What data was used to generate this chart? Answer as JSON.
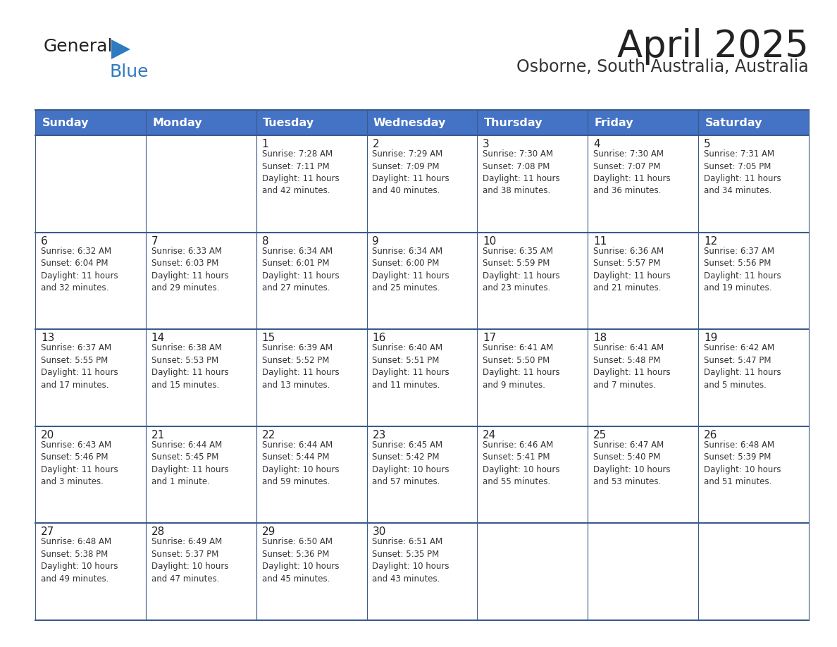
{
  "title": "April 2025",
  "subtitle": "Osborne, South Australia, Australia",
  "days_of_week": [
    "Sunday",
    "Monday",
    "Tuesday",
    "Wednesday",
    "Thursday",
    "Friday",
    "Saturday"
  ],
  "header_bg": "#4472C4",
  "header_text": "#FFFFFF",
  "row_bg": "#FFFFFF",
  "cell_border_color": "#3A5A8C",
  "day_number_color": "#222222",
  "text_color": "#333333",
  "title_color": "#222222",
  "subtitle_color": "#333333",
  "logo_general_color": "#222222",
  "logo_blue_color": "#2E7BBF",
  "weeks": [
    {
      "days": [
        {
          "date": "",
          "info": ""
        },
        {
          "date": "",
          "info": ""
        },
        {
          "date": "1",
          "info": "Sunrise: 7:28 AM\nSunset: 7:11 PM\nDaylight: 11 hours\nand 42 minutes."
        },
        {
          "date": "2",
          "info": "Sunrise: 7:29 AM\nSunset: 7:09 PM\nDaylight: 11 hours\nand 40 minutes."
        },
        {
          "date": "3",
          "info": "Sunrise: 7:30 AM\nSunset: 7:08 PM\nDaylight: 11 hours\nand 38 minutes."
        },
        {
          "date": "4",
          "info": "Sunrise: 7:30 AM\nSunset: 7:07 PM\nDaylight: 11 hours\nand 36 minutes."
        },
        {
          "date": "5",
          "info": "Sunrise: 7:31 AM\nSunset: 7:05 PM\nDaylight: 11 hours\nand 34 minutes."
        }
      ]
    },
    {
      "days": [
        {
          "date": "6",
          "info": "Sunrise: 6:32 AM\nSunset: 6:04 PM\nDaylight: 11 hours\nand 32 minutes."
        },
        {
          "date": "7",
          "info": "Sunrise: 6:33 AM\nSunset: 6:03 PM\nDaylight: 11 hours\nand 29 minutes."
        },
        {
          "date": "8",
          "info": "Sunrise: 6:34 AM\nSunset: 6:01 PM\nDaylight: 11 hours\nand 27 minutes."
        },
        {
          "date": "9",
          "info": "Sunrise: 6:34 AM\nSunset: 6:00 PM\nDaylight: 11 hours\nand 25 minutes."
        },
        {
          "date": "10",
          "info": "Sunrise: 6:35 AM\nSunset: 5:59 PM\nDaylight: 11 hours\nand 23 minutes."
        },
        {
          "date": "11",
          "info": "Sunrise: 6:36 AM\nSunset: 5:57 PM\nDaylight: 11 hours\nand 21 minutes."
        },
        {
          "date": "12",
          "info": "Sunrise: 6:37 AM\nSunset: 5:56 PM\nDaylight: 11 hours\nand 19 minutes."
        }
      ]
    },
    {
      "days": [
        {
          "date": "13",
          "info": "Sunrise: 6:37 AM\nSunset: 5:55 PM\nDaylight: 11 hours\nand 17 minutes."
        },
        {
          "date": "14",
          "info": "Sunrise: 6:38 AM\nSunset: 5:53 PM\nDaylight: 11 hours\nand 15 minutes."
        },
        {
          "date": "15",
          "info": "Sunrise: 6:39 AM\nSunset: 5:52 PM\nDaylight: 11 hours\nand 13 minutes."
        },
        {
          "date": "16",
          "info": "Sunrise: 6:40 AM\nSunset: 5:51 PM\nDaylight: 11 hours\nand 11 minutes."
        },
        {
          "date": "17",
          "info": "Sunrise: 6:41 AM\nSunset: 5:50 PM\nDaylight: 11 hours\nand 9 minutes."
        },
        {
          "date": "18",
          "info": "Sunrise: 6:41 AM\nSunset: 5:48 PM\nDaylight: 11 hours\nand 7 minutes."
        },
        {
          "date": "19",
          "info": "Sunrise: 6:42 AM\nSunset: 5:47 PM\nDaylight: 11 hours\nand 5 minutes."
        }
      ]
    },
    {
      "days": [
        {
          "date": "20",
          "info": "Sunrise: 6:43 AM\nSunset: 5:46 PM\nDaylight: 11 hours\nand 3 minutes."
        },
        {
          "date": "21",
          "info": "Sunrise: 6:44 AM\nSunset: 5:45 PM\nDaylight: 11 hours\nand 1 minute."
        },
        {
          "date": "22",
          "info": "Sunrise: 6:44 AM\nSunset: 5:44 PM\nDaylight: 10 hours\nand 59 minutes."
        },
        {
          "date": "23",
          "info": "Sunrise: 6:45 AM\nSunset: 5:42 PM\nDaylight: 10 hours\nand 57 minutes."
        },
        {
          "date": "24",
          "info": "Sunrise: 6:46 AM\nSunset: 5:41 PM\nDaylight: 10 hours\nand 55 minutes."
        },
        {
          "date": "25",
          "info": "Sunrise: 6:47 AM\nSunset: 5:40 PM\nDaylight: 10 hours\nand 53 minutes."
        },
        {
          "date": "26",
          "info": "Sunrise: 6:48 AM\nSunset: 5:39 PM\nDaylight: 10 hours\nand 51 minutes."
        }
      ]
    },
    {
      "days": [
        {
          "date": "27",
          "info": "Sunrise: 6:48 AM\nSunset: 5:38 PM\nDaylight: 10 hours\nand 49 minutes."
        },
        {
          "date": "28",
          "info": "Sunrise: 6:49 AM\nSunset: 5:37 PM\nDaylight: 10 hours\nand 47 minutes."
        },
        {
          "date": "29",
          "info": "Sunrise: 6:50 AM\nSunset: 5:36 PM\nDaylight: 10 hours\nand 45 minutes."
        },
        {
          "date": "30",
          "info": "Sunrise: 6:51 AM\nSunset: 5:35 PM\nDaylight: 10 hours\nand 43 minutes."
        },
        {
          "date": "",
          "info": ""
        },
        {
          "date": "",
          "info": ""
        },
        {
          "date": "",
          "info": ""
        }
      ]
    }
  ]
}
